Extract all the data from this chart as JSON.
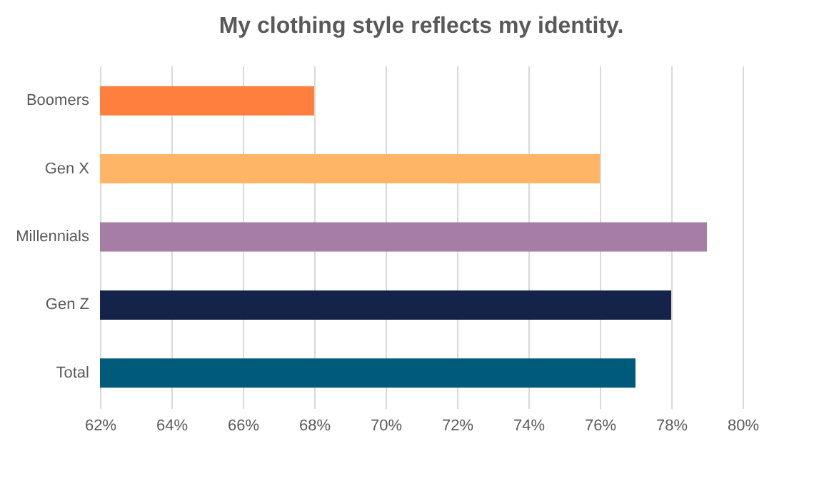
{
  "chart_data": {
    "type": "bar",
    "orientation": "horizontal",
    "title": "My clothing style reflects my identity.",
    "categories": [
      "Boomers",
      "Gen X",
      "Millennials",
      "Gen Z",
      "Total"
    ],
    "values": [
      68,
      76,
      79,
      78,
      77
    ],
    "colors": [
      "#ff7f3f",
      "#ffb566",
      "#a57da5",
      "#14234a",
      "#005a7a"
    ],
    "xlim": [
      62,
      80
    ],
    "xticks": [
      {
        "value": 62,
        "label": "62%"
      },
      {
        "value": 64,
        "label": "64%"
      },
      {
        "value": 66,
        "label": "66%"
      },
      {
        "value": 68,
        "label": "68%"
      },
      {
        "value": 70,
        "label": "70%"
      },
      {
        "value": 72,
        "label": "72%"
      },
      {
        "value": 74,
        "label": "74%"
      },
      {
        "value": 76,
        "label": "76%"
      },
      {
        "value": 78,
        "label": "78%"
      },
      {
        "value": 80,
        "label": "80%"
      }
    ],
    "grid": "x"
  }
}
